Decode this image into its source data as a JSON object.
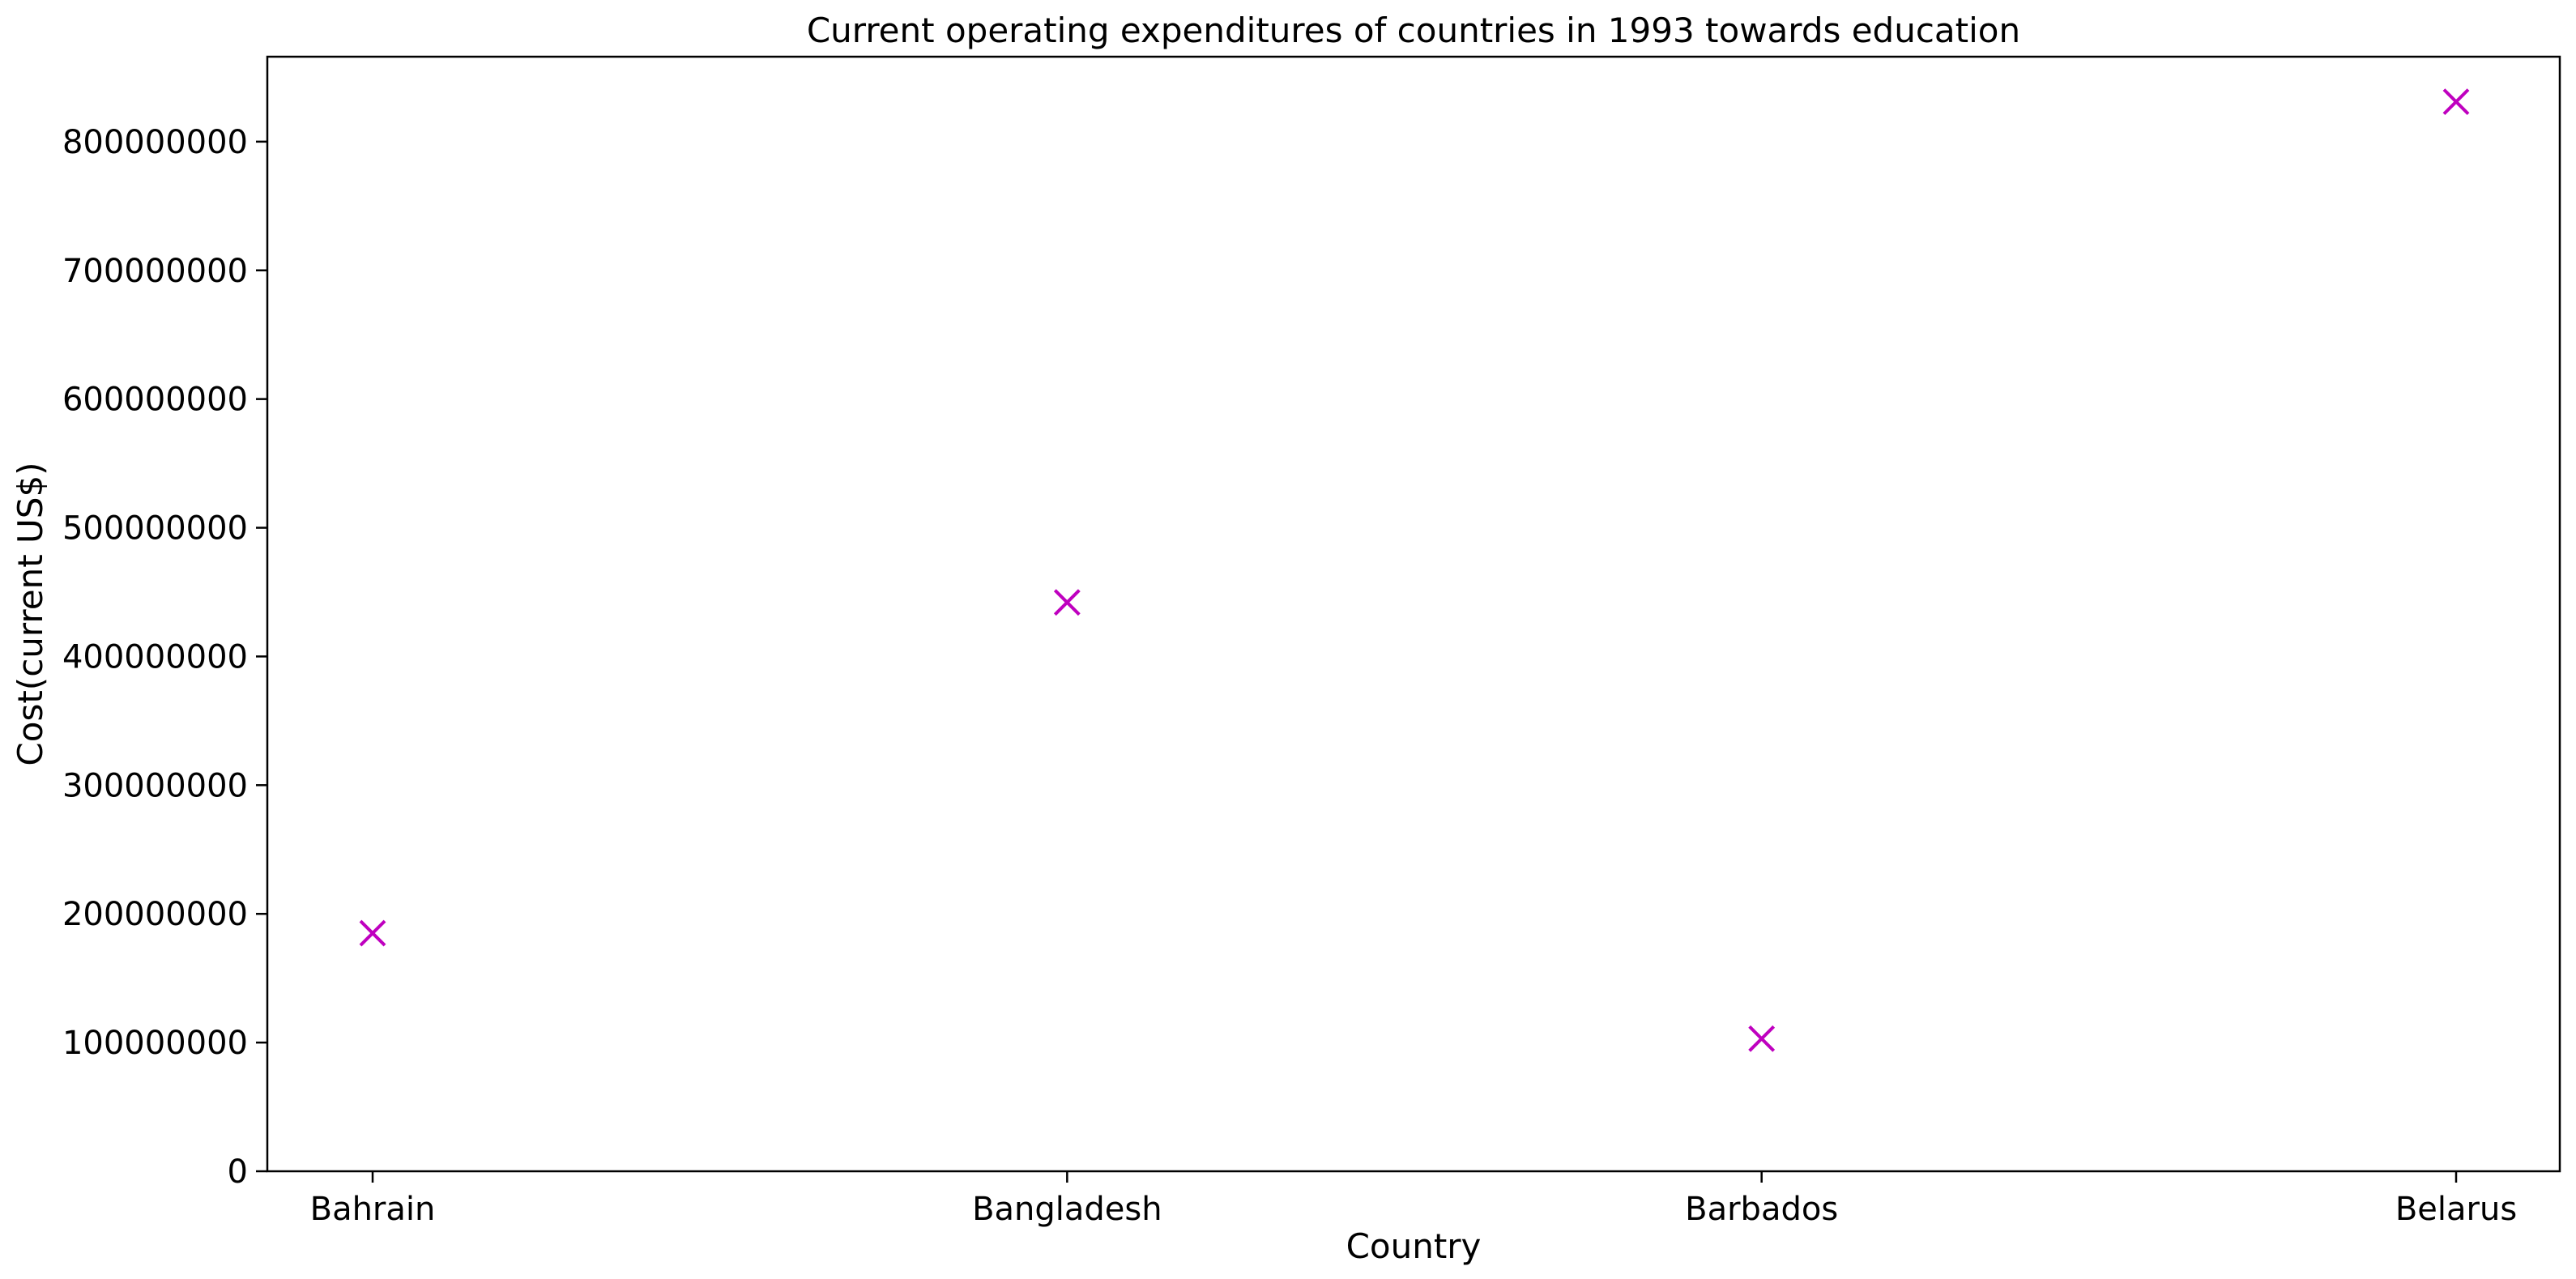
{
  "chart_data": {
    "type": "scatter",
    "title": "Current operating expenditures of countries in 1993 towards education",
    "xlabel": "Country",
    "ylabel": "Cost(current US$)",
    "categories": [
      "Bahrain",
      "Bangladesh",
      "Barbados",
      "Belarus"
    ],
    "series": [
      {
        "values": [
          185000000,
          442000000,
          103000000,
          831000000
        ],
        "marker": "x",
        "color": "#bf00bf"
      }
    ],
    "ylim": [
      0,
      866000000
    ],
    "yticks": [
      0,
      100000000,
      200000000,
      300000000,
      400000000,
      500000000,
      600000000,
      700000000,
      800000000
    ],
    "ytick_labels": [
      "0",
      "100000000",
      "200000000",
      "300000000",
      "400000000",
      "500000000",
      "600000000",
      "700000000",
      "800000000"
    ],
    "grid": false,
    "legend": "none"
  }
}
